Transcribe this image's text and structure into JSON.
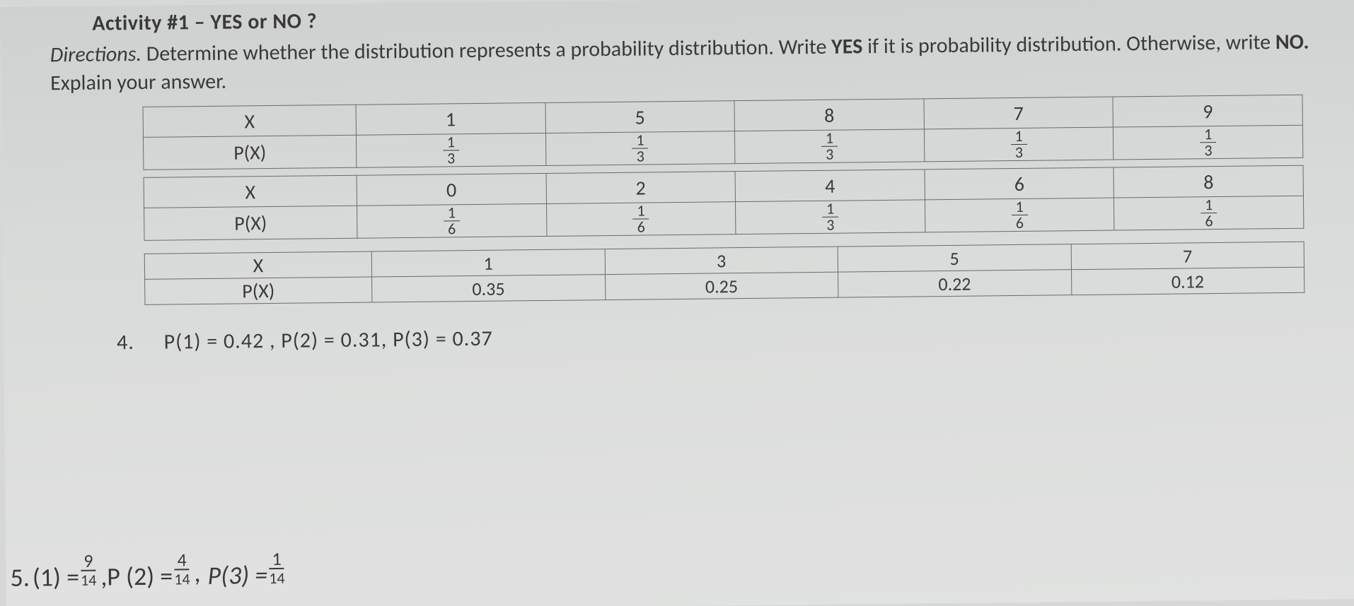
{
  "title": "Activity #1 – YES or NO ?",
  "directions_label": "Directions.",
  "directions_text1": "Determine whether the distribution represents a probability distribution. Write ",
  "directions_yes": "YES",
  "directions_text2": " if it is probability distribution. Otherwise, write ",
  "directions_no": "NO.",
  "directions_text3": " Explain your answer.",
  "table1": {
    "rowhdr_x": "X",
    "rowhdr_px": "P(X)",
    "x": [
      "1",
      "5",
      "8",
      "7",
      "9"
    ],
    "p": [
      {
        "num": "1",
        "den": "3"
      },
      {
        "num": "1",
        "den": "3"
      },
      {
        "num": "1",
        "den": "3"
      },
      {
        "num": "1",
        "den": "3"
      },
      {
        "num": "1",
        "den": "3"
      }
    ],
    "border_color": "#6a6a6a",
    "font_size": 28
  },
  "table2": {
    "rowhdr_x": "X",
    "rowhdr_px": "P(X)",
    "x": [
      "0",
      "2",
      "4",
      "6",
      "8"
    ],
    "p": [
      {
        "num": "1",
        "den": "6"
      },
      {
        "num": "1",
        "den": "6"
      },
      {
        "num": "1",
        "den": "3"
      },
      {
        "num": "1",
        "den": "6"
      },
      {
        "num": "1",
        "den": "6"
      }
    ],
    "border_color": "#6a6a6a",
    "font_size": 28
  },
  "table3": {
    "rowhdr_x": "X",
    "rowhdr_px": "P(X)",
    "x": [
      "1",
      "3",
      "5",
      "7"
    ],
    "p": [
      "0.35",
      "0.25",
      "0.22",
      "0.12"
    ],
    "border_color": "#6a6a6a",
    "font_size": 26
  },
  "q4": {
    "number": "4.",
    "text": "P(1) = 0.42 , P(2) = 0.31, P(3) = 0.37"
  },
  "q5": {
    "number": "5.",
    "parts": {
      "a_lhs": "(1) =",
      "a_num": "9",
      "a_den": "14",
      "sep1": ",P (2) =",
      "b_num": "4",
      "b_den": "14",
      "sep2": ", ",
      "c_lhs": "P(3) =",
      "c_num": "1",
      "c_den": "14"
    }
  },
  "colors": {
    "text": "#3a3a3a",
    "background": "#d9dbda"
  }
}
